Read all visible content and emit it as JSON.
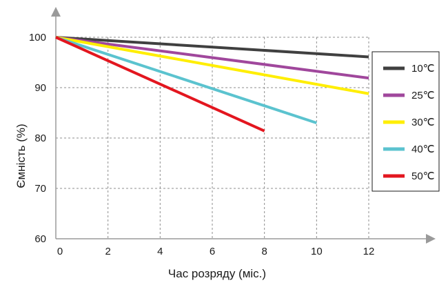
{
  "chart_data": {
    "type": "line",
    "title": "",
    "xlabel": "Час розряду (міс.)",
    "ylabel": "Ємність (%)",
    "xlim": [
      0,
      12
    ],
    "ylim": [
      60,
      100
    ],
    "x_ticks": [
      0,
      2,
      4,
      6,
      8,
      10,
      12
    ],
    "y_ticks": [
      60,
      70,
      80,
      90,
      100
    ],
    "grid": true,
    "legend_position": "right",
    "series": [
      {
        "name": "10℃",
        "color": "#404040",
        "points": [
          [
            0,
            100
          ],
          [
            12,
            96.1
          ]
        ]
      },
      {
        "name": "25℃",
        "color": "#a0479c",
        "points": [
          [
            0,
            100
          ],
          [
            12,
            91.9
          ]
        ]
      },
      {
        "name": "30℃",
        "color": "#ffee00",
        "points": [
          [
            0,
            100
          ],
          [
            12,
            88.8
          ]
        ]
      },
      {
        "name": "40℃",
        "color": "#5bc3cf",
        "points": [
          [
            0,
            100
          ],
          [
            10,
            83.0
          ]
        ]
      },
      {
        "name": "50℃",
        "color": "#e3161f",
        "points": [
          [
            0,
            100
          ],
          [
            8,
            81.4
          ]
        ]
      }
    ]
  }
}
